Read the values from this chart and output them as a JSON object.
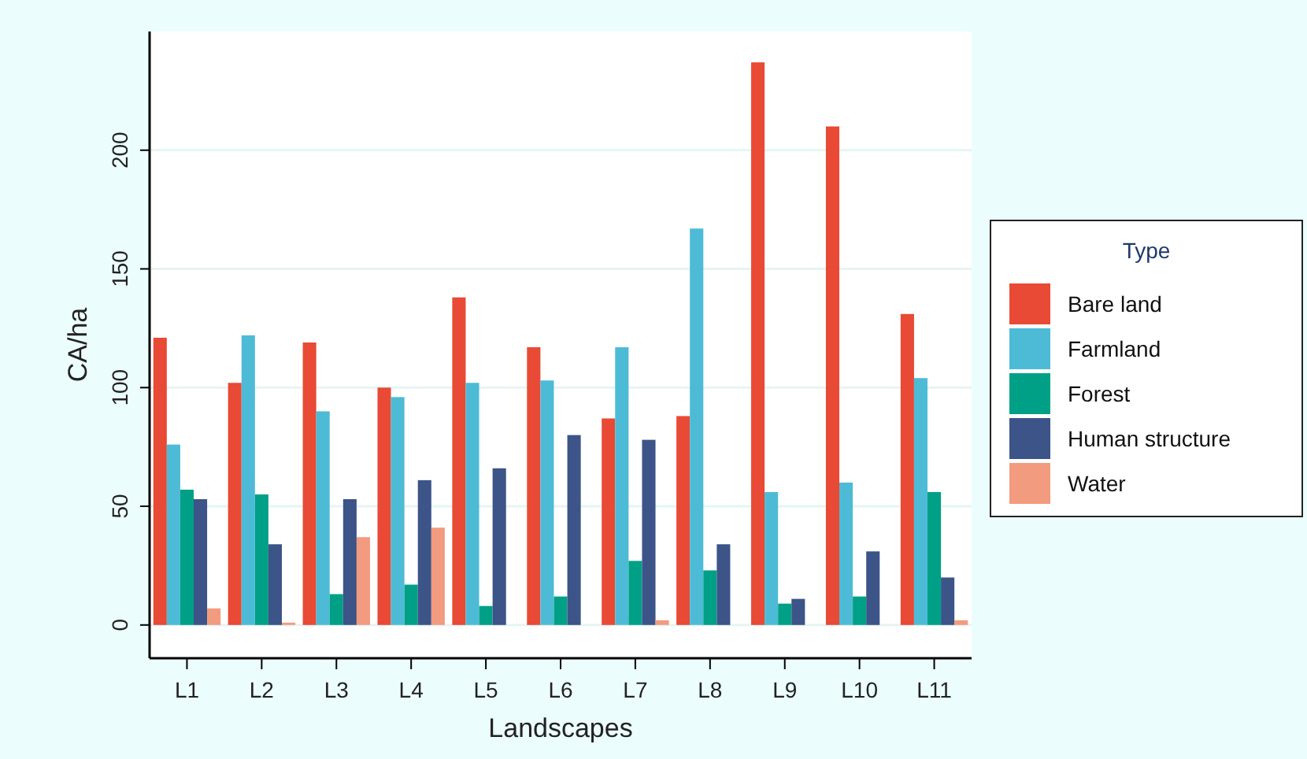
{
  "chart_data": {
    "type": "bar",
    "xlabel": "Landscapes",
    "ylabel": "CA/ha",
    "legend_title": "Type",
    "legend": "right",
    "grid": "y",
    "categories": [
      "L1",
      "L2",
      "L3",
      "L4",
      "L5",
      "L6",
      "L7",
      "L8",
      "L9",
      "L10",
      "L11"
    ],
    "ylim": [
      -14,
      250
    ],
    "yticks": [
      0,
      50,
      100,
      150,
      200
    ],
    "series": [
      {
        "name": "Bare land",
        "color": "#e84a35",
        "values": [
          121,
          102,
          119,
          100,
          138,
          117,
          87,
          88,
          237,
          210,
          131
        ]
      },
      {
        "name": "Farmland",
        "color": "#4dbbd5",
        "values": [
          76,
          122,
          90,
          96,
          102,
          103,
          117,
          167,
          56,
          60,
          104
        ]
      },
      {
        "name": "Forest",
        "color": "#00a087",
        "values": [
          57,
          55,
          13,
          17,
          8,
          12,
          27,
          23,
          9,
          12,
          56
        ]
      },
      {
        "name": "Human structure",
        "color": "#3c5488",
        "values": [
          53,
          34,
          53,
          61,
          66,
          80,
          78,
          34,
          11,
          31,
          20
        ]
      },
      {
        "name": "Water",
        "color": "#f39b7f",
        "values": [
          7,
          1,
          37,
          41,
          0,
          0,
          2,
          0,
          0,
          0,
          2
        ]
      }
    ]
  }
}
